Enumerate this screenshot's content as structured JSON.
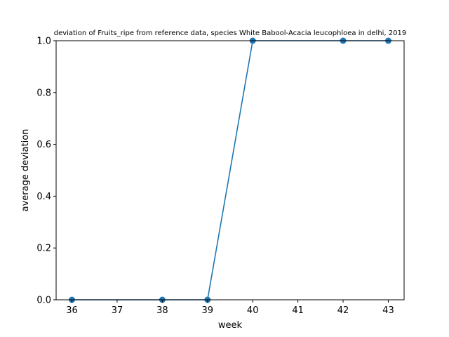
{
  "chart_data": {
    "type": "line",
    "title": "deviation of Fruits_ripe from reference data, species White Babool-Acacia leucophloea in delhi, 2019",
    "xlabel": "week",
    "ylabel": "average deviation",
    "xlim": [
      35.65,
      43.35
    ],
    "ylim": [
      0,
      1
    ],
    "xticks": [
      36,
      37,
      38,
      39,
      40,
      41,
      42,
      43
    ],
    "yticks": [
      0.0,
      0.2,
      0.4,
      0.6,
      0.8,
      1.0
    ],
    "grid": false,
    "series": [
      {
        "x": [
          36,
          38,
          39,
          40,
          42,
          43
        ],
        "values": [
          0,
          0,
          0,
          1,
          1,
          1
        ],
        "color": "#1f77b4",
        "marker": "circle"
      }
    ]
  }
}
